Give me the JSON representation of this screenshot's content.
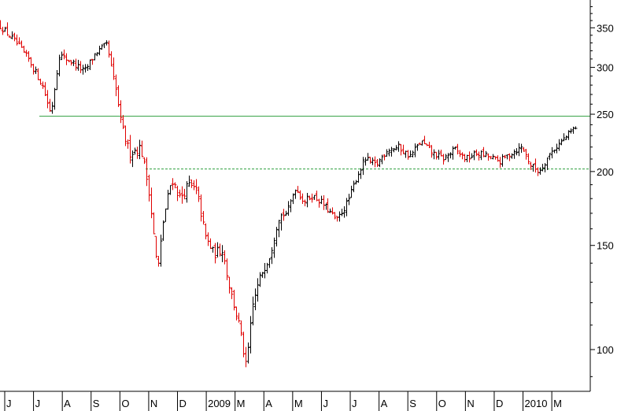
{
  "chart_data": {
    "type": "ohlc",
    "title": "",
    "xlabel": "",
    "ylabel": "",
    "yscale": "log",
    "ylim": [
      85,
      390
    ],
    "y_ticks": [
      100,
      150,
      200,
      250,
      300,
      350
    ],
    "x_ticks": [
      "J",
      "J",
      "A",
      "S",
      "O",
      "N",
      "D",
      "2009",
      "M",
      "A",
      "M",
      "J",
      "J",
      "A",
      "S",
      "O",
      "N",
      "D",
      "2010",
      "M"
    ],
    "reference_lines": [
      {
        "value": 248,
        "style": "solid"
      },
      {
        "value": 202,
        "style": "dashed"
      }
    ],
    "colors": {
      "up": "#000000",
      "down": "#e00000",
      "reference": "#2e9e3e"
    },
    "close_path": [
      [
        0,
        352
      ],
      [
        0.5,
        333
      ],
      [
        1.0,
        310
      ],
      [
        1.5,
        280
      ],
      [
        1.8,
        250
      ],
      [
        2.1,
        315
      ],
      [
        2.6,
        305
      ],
      [
        3.0,
        295
      ],
      [
        3.4,
        318
      ],
      [
        3.8,
        328
      ],
      [
        4.0,
        290
      ],
      [
        4.15,
        270
      ],
      [
        4.3,
        240
      ],
      [
        4.6,
        215
      ],
      [
        5.0,
        220
      ],
      [
        5.3,
        185
      ],
      [
        5.6,
        135
      ],
      [
        5.8,
        165
      ],
      [
        6.1,
        195
      ],
      [
        6.4,
        180
      ],
      [
        6.7,
        190
      ],
      [
        7.0,
        185
      ],
      [
        7.3,
        155
      ],
      [
        7.6,
        145
      ],
      [
        7.9,
        148
      ],
      [
        8.2,
        125
      ],
      [
        8.5,
        110
      ],
      [
        8.75,
        93
      ],
      [
        9.0,
        120
      ],
      [
        9.3,
        135
      ],
      [
        9.6,
        145
      ],
      [
        9.9,
        168
      ],
      [
        10.2,
        170
      ],
      [
        10.5,
        188
      ],
      [
        10.8,
        178
      ],
      [
        11.1,
        182
      ],
      [
        11.4,
        178
      ],
      [
        11.7,
        172
      ],
      [
        12.0,
        165
      ],
      [
        12.4,
        178
      ],
      [
        12.7,
        195
      ],
      [
        13.0,
        210
      ],
      [
        13.4,
        205
      ],
      [
        13.8,
        218
      ],
      [
        14.2,
        220
      ],
      [
        14.6,
        212
      ],
      [
        15.0,
        225
      ],
      [
        15.4,
        215
      ],
      [
        15.8,
        210
      ],
      [
        16.2,
        218
      ],
      [
        16.6,
        210
      ],
      [
        17.0,
        215
      ],
      [
        17.4,
        212
      ],
      [
        17.8,
        208
      ],
      [
        18.2,
        215
      ],
      [
        18.6,
        220
      ],
      [
        18.9,
        205
      ],
      [
        19.2,
        200
      ],
      [
        19.6,
        215
      ],
      [
        20.0,
        225
      ],
      [
        20.5,
        238
      ]
    ]
  }
}
